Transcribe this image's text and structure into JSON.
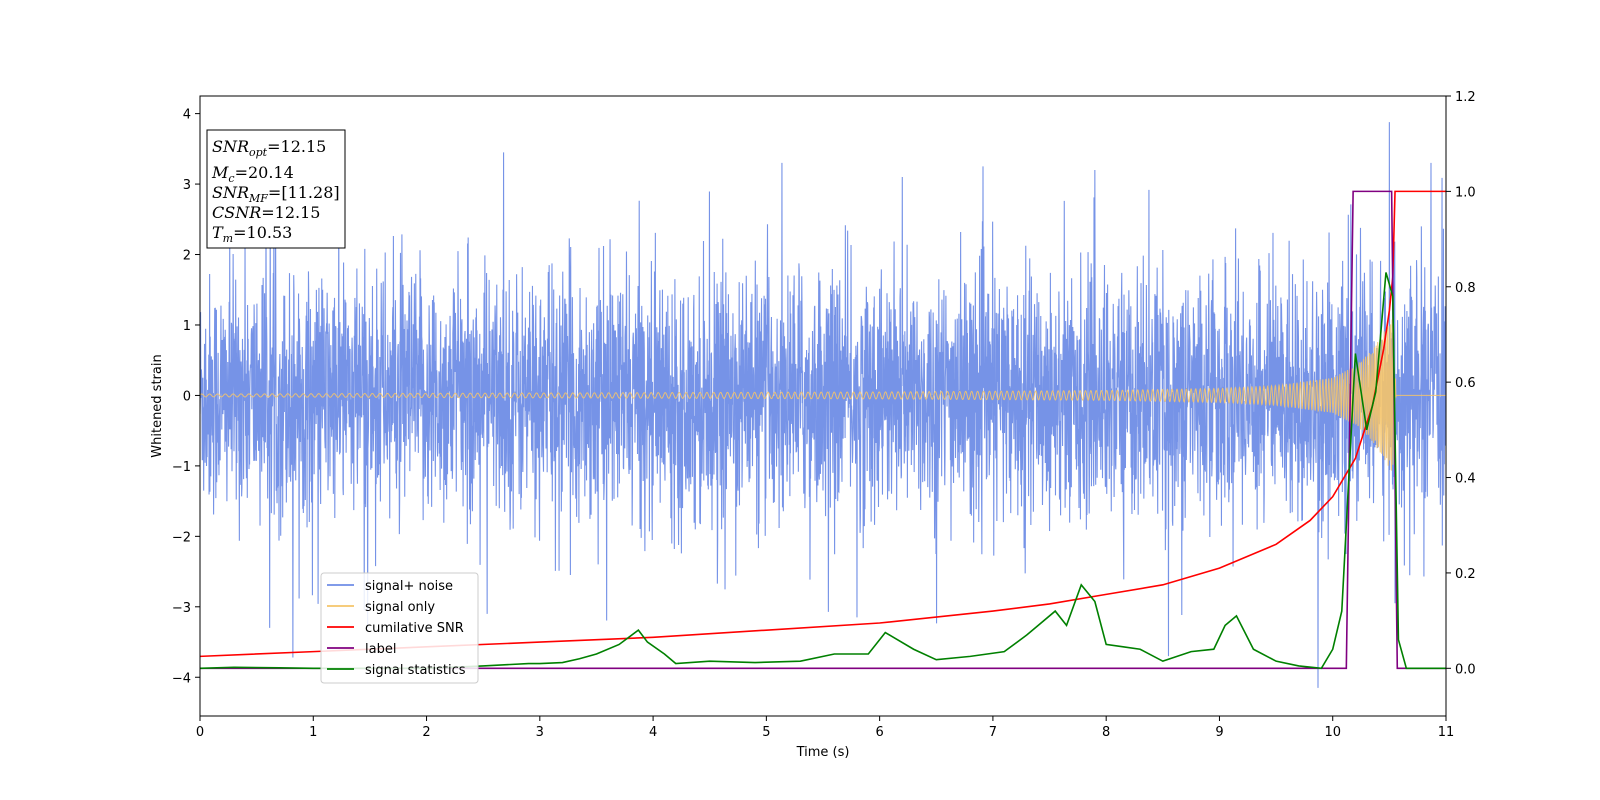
{
  "chart_data": {
    "type": "line",
    "xlabel": "Time (s)",
    "ylabel": "Whitened strain",
    "xlim": [
      0,
      11
    ],
    "ylim": [
      -4.55,
      4.25
    ],
    "y2lim": [
      -0.1,
      1.2
    ],
    "x_ticks": [
      0,
      1,
      2,
      3,
      4,
      5,
      6,
      7,
      8,
      9,
      10,
      11
    ],
    "x_tick_labels": [
      "0",
      "1",
      "2",
      "3",
      "4",
      "5",
      "6",
      "7",
      "8",
      "9",
      "10",
      "11"
    ],
    "y_ticks": [
      4,
      3,
      2,
      1,
      0,
      -1,
      -2,
      -3,
      -4
    ],
    "y_tick_labels": [
      "4",
      "3",
      "2",
      "1",
      "0",
      "−1",
      "−2",
      "−3",
      "−4"
    ],
    "y2_ticks": [
      1.2,
      1.0,
      0.8,
      0.6,
      0.4,
      0.2,
      0.0
    ],
    "y2_tick_labels": [
      "1.2",
      "1.0",
      "0.8",
      "0.6",
      "0.4",
      "0.2",
      "0.0"
    ],
    "grid": false,
    "legend_position": "lower-left",
    "annotation": {
      "snr_opt": "=12.15",
      "mc": "=20.14",
      "snr_mf": "=[11.28]",
      "csnr": "=12.15",
      "tm": "=10.53"
    },
    "series": [
      {
        "name": "signal+ noise",
        "axis": "left",
        "color": "#6f8de6",
        "note_kind": "noise",
        "x_range": [
          0,
          11
        ],
        "amplitude_core": 1.6,
        "peaks": [
          [
            0.82,
            -3.72
          ],
          [
            1.45,
            -3.05
          ],
          [
            2.68,
            3.45
          ],
          [
            5.8,
            -3.15
          ],
          [
            6.2,
            3.1
          ],
          [
            7.9,
            3.2
          ],
          [
            8.55,
            -3.7
          ],
          [
            9.87,
            -4.15
          ],
          [
            10.5,
            3.88
          ],
          [
            10.55,
            -2.95
          ]
        ]
      },
      {
        "name": "signal only",
        "axis": "left",
        "color": "#f5c46a",
        "note_kind": "chirp",
        "x": [
          0,
          2,
          4,
          6,
          8,
          9,
          9.5,
          10,
          10.2,
          10.35,
          10.45,
          10.53,
          10.56,
          11
        ],
        "envelope": [
          0.02,
          0.03,
          0.04,
          0.05,
          0.07,
          0.1,
          0.14,
          0.25,
          0.42,
          0.65,
          0.9,
          1.1,
          0.0,
          0.0
        ]
      },
      {
        "name": "cumilative SNR",
        "axis": "right",
        "color": "#ff0000",
        "x": [
          0,
          1,
          2,
          3,
          4,
          5,
          6,
          7,
          7.5,
          8,
          8.5,
          9,
          9.5,
          9.8,
          10,
          10.2,
          10.35,
          10.45,
          10.5,
          10.53,
          10.55,
          11
        ],
        "values": [
          0.025,
          0.035,
          0.045,
          0.055,
          0.065,
          0.08,
          0.095,
          0.12,
          0.135,
          0.155,
          0.175,
          0.21,
          0.26,
          0.31,
          0.36,
          0.44,
          0.55,
          0.67,
          0.75,
          0.82,
          1.0,
          1.0
        ]
      },
      {
        "name": "label",
        "axis": "right",
        "color": "#800080",
        "x": [
          0,
          10.12,
          10.18,
          10.52,
          10.57,
          11
        ],
        "values": [
          0.0,
          0.0,
          1.0,
          1.0,
          0.0,
          0.0
        ]
      },
      {
        "name": "signal statistics",
        "axis": "right",
        "color": "#008000",
        "x": [
          0,
          0.3,
          0.7,
          1.0,
          1.5,
          2.0,
          2.5,
          2.9,
          3.0,
          3.2,
          3.35,
          3.5,
          3.7,
          3.87,
          3.95,
          4.1,
          4.2,
          4.5,
          4.9,
          5.3,
          5.6,
          5.9,
          6.05,
          6.3,
          6.5,
          6.8,
          7.1,
          7.3,
          7.4,
          7.55,
          7.65,
          7.78,
          7.9,
          8.0,
          8.15,
          8.3,
          8.5,
          8.75,
          8.95,
          9.05,
          9.15,
          9.3,
          9.5,
          9.7,
          9.9,
          10.0,
          10.08,
          10.2,
          10.3,
          10.38,
          10.47,
          10.53,
          10.58,
          10.65,
          11
        ],
        "values": [
          0.0,
          0.002,
          0.001,
          0.0,
          0.0,
          0.0,
          0.005,
          0.01,
          0.01,
          0.012,
          0.02,
          0.03,
          0.05,
          0.08,
          0.055,
          0.03,
          0.01,
          0.015,
          0.012,
          0.015,
          0.03,
          0.03,
          0.075,
          0.04,
          0.018,
          0.025,
          0.035,
          0.07,
          0.09,
          0.12,
          0.09,
          0.175,
          0.14,
          0.05,
          0.045,
          0.04,
          0.015,
          0.035,
          0.04,
          0.09,
          0.11,
          0.04,
          0.015,
          0.005,
          0.0,
          0.04,
          0.12,
          0.66,
          0.5,
          0.58,
          0.83,
          0.78,
          0.06,
          0.0,
          0.0
        ]
      }
    ]
  }
}
